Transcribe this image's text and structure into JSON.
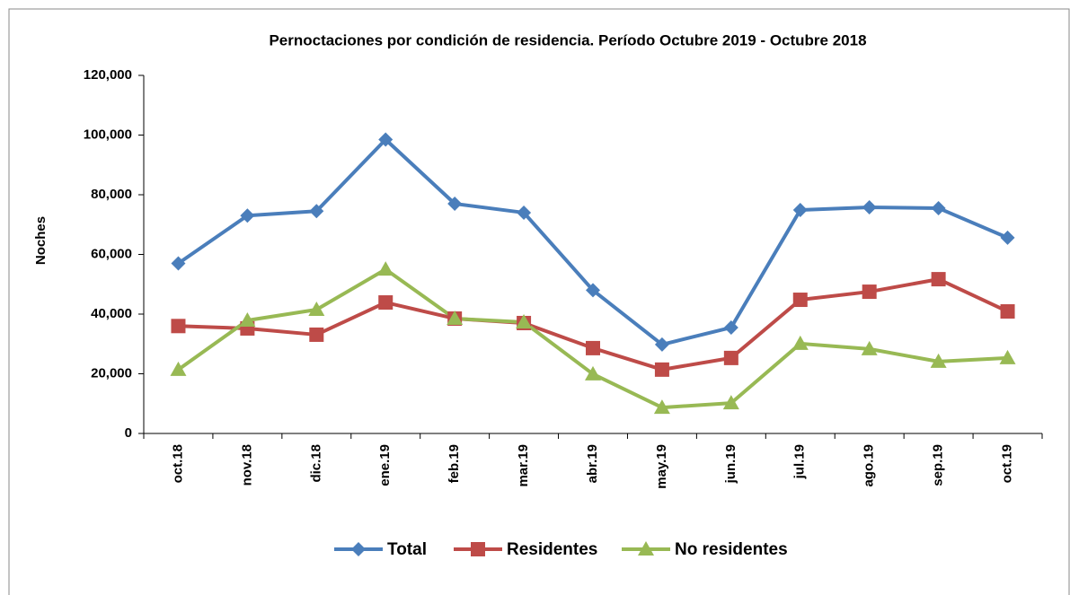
{
  "chart_data": {
    "type": "line",
    "title": "Pernoctaciones por condición de residencia. Período Octubre 2019 - Octubre 2018",
    "y_label": "Noches",
    "categories": [
      "oct.18",
      "nov.18",
      "dic.18",
      "ene.19",
      "feb.19",
      "mar.19",
      "abr.19",
      "may.19",
      "jun.19",
      "jul.19",
      "ago.19",
      "sep.19",
      "oct.19"
    ],
    "series": [
      {
        "name": "Total",
        "color": "#4a7ebb",
        "marker": "diamond",
        "values": [
          57000,
          73000,
          74500,
          98500,
          77000,
          74000,
          48000,
          29800,
          35500,
          74900,
          75800,
          75500,
          65600
        ]
      },
      {
        "name": "Residentes",
        "color": "#be4b48",
        "marker": "square",
        "values": [
          36000,
          35200,
          33100,
          43900,
          38500,
          37000,
          28600,
          21400,
          25300,
          44800,
          47500,
          51700,
          40900
        ]
      },
      {
        "name": "No residentes",
        "color": "#98b954",
        "marker": "triangle",
        "values": [
          21400,
          37900,
          41500,
          55000,
          38500,
          37300,
          19900,
          8700,
          10200,
          30100,
          28300,
          24100,
          25300
        ]
      }
    ],
    "ylim": [
      0,
      120000
    ],
    "yticks": [
      0,
      {
        "value": 20000,
        "label": "20,000"
      },
      {
        "value": 40000,
        "label": "40,000"
      },
      {
        "value": 60000,
        "label": "60,000"
      },
      {
        "value": 80000,
        "label": "80,000"
      },
      {
        "value": 100000,
        "label": "100,000"
      },
      {
        "value": 120000,
        "label": "120,000"
      }
    ],
    "legend": "bottom"
  }
}
